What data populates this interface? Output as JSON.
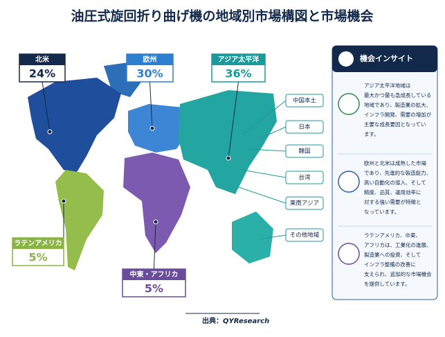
{
  "header": {
    "title": "油圧式旋回折り曲げ機の地域別市場構図と市場機会"
  },
  "regions": [
    {
      "name": "北米",
      "share": "24%"
    },
    {
      "name": "欧州",
      "share": "30%"
    },
    {
      "name": "アジア太平洋",
      "share": "36%"
    },
    {
      "name": "ラテンアメリカ",
      "share": "5%"
    },
    {
      "name": "中東・アフリカ",
      "share": "5%"
    }
  ],
  "subregions": [
    "中国本土",
    "日本",
    "韓国",
    "台湾",
    "東南アジア",
    "その他地域"
  ],
  "insights": {
    "title": "機会インサイト",
    "items": [
      [
        "アジア太平洋地域は",
        "最大かつ最も急成長している",
        "地域であり、製造業の拡大、",
        "インフラ開発、需要の増加が",
        "主要な成長要因となってい",
        "ます。"
      ],
      [
        "欧州と北米は成熟した市場",
        "であり、先進的な製造能力、",
        "高い自動化の導入、そして",
        "精度、品質、運用効率に",
        "対する強い需要が特徴と",
        "なっています。"
      ],
      [
        "ラテンアメリカ、中東、",
        "アフリカは、工業化の進展、",
        "製造業への投資、そして",
        "インフラ整備の改善に",
        "支えられ、追加的な市場機会",
        "を提供しています。"
      ]
    ]
  },
  "footer": {
    "label": "出典：",
    "source": "QYResearch"
  }
}
